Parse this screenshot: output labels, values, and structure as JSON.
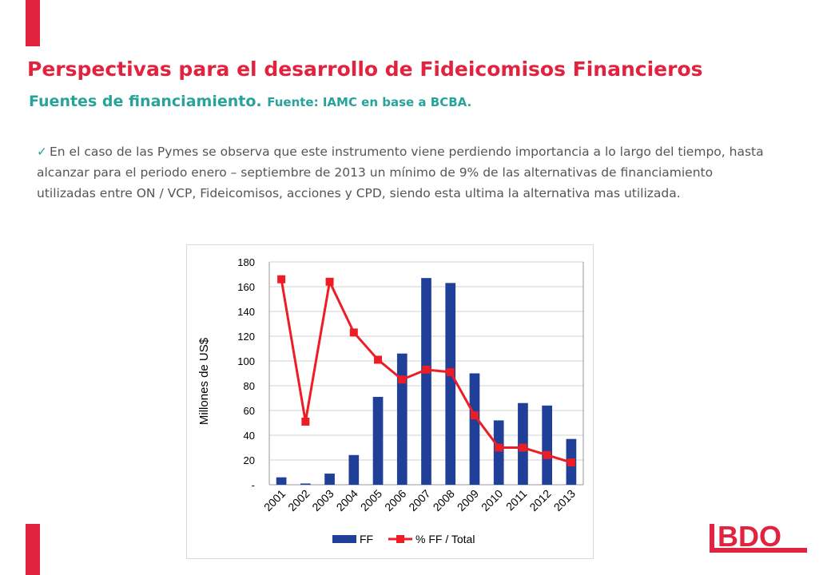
{
  "slide": {
    "title": "Perspectivas para el desarrollo de Fideicomisos Financieros",
    "subtitle": "Fuentes de financiamiento.",
    "source": "Fuente: IAMC en base a BCBA.",
    "bullet": "En el caso de las Pymes se observa que este instrumento viene perdiendo importancia a lo largo del tiempo, hasta alcanzar para el periodo enero – septiembre de 2013 un mínimo de 9% de las alternativas de financiamiento utilizadas entre ON / VCP, Fideicomisos, acciones y CPD, siendo esta ultima la alternativa mas utilizada.",
    "accent_color": "#e2233f",
    "subtitle_color": "#28a39a"
  },
  "chart_data": {
    "type": "bar",
    "categories": [
      "2001",
      "2002",
      "2003",
      "2004",
      "2005",
      "2006",
      "2007",
      "2008",
      "2009",
      "2010",
      "2011",
      "2012",
      "2013"
    ],
    "series": [
      {
        "name": "FF",
        "type": "bar",
        "axis": "left",
        "color": "#1f3f99",
        "values": [
          6,
          1,
          9,
          24,
          71,
          106,
          167,
          163,
          90,
          52,
          66,
          64,
          37
        ]
      },
      {
        "name": "% FF / Total",
        "type": "line",
        "axis": "right",
        "color": "#ee1c25",
        "values": [
          0.83,
          0.255,
          0.82,
          0.615,
          0.505,
          0.425,
          0.465,
          0.455,
          0.28,
          0.15,
          0.15,
          0.12,
          0.09
        ]
      }
    ],
    "ylabel": "Millones de US$",
    "ylim": [
      0,
      180
    ],
    "y_ticks": [
      "-",
      "20",
      "40",
      "60",
      "80",
      "100",
      "120",
      "140",
      "160",
      "180"
    ],
    "y_tick_values": [
      0,
      20,
      40,
      60,
      80,
      100,
      120,
      140,
      160,
      180
    ],
    "y2lim": [
      0,
      0.9
    ],
    "y2_ticks": [
      "0%",
      "10%",
      "20%",
      "30%",
      "40%",
      "50%",
      "60%",
      "70%",
      "80%",
      "90%"
    ],
    "y2_tick_values": [
      0,
      0.1,
      0.2,
      0.3,
      0.4,
      0.5,
      0.6,
      0.7,
      0.8,
      0.9
    ],
    "grid": true,
    "legend": "bottom"
  },
  "logo": {
    "text": "BDO",
    "color": "#e2233f"
  }
}
